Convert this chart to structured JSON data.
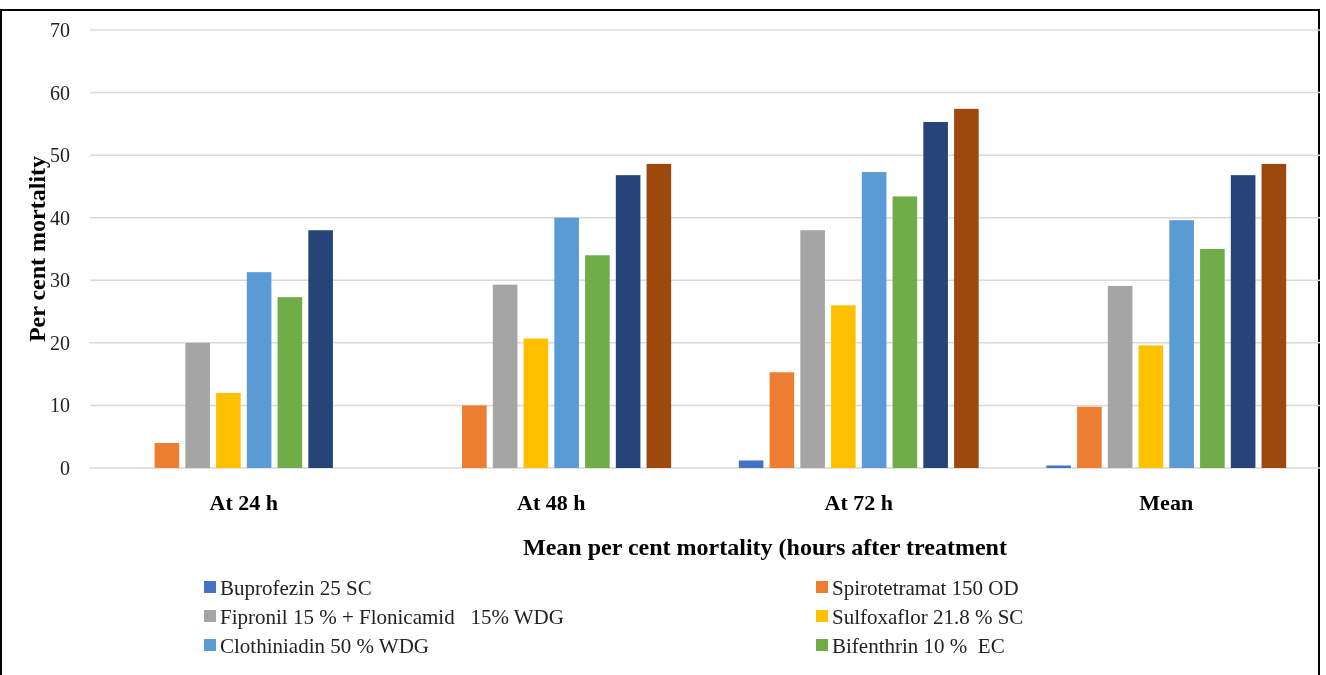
{
  "chart_data": {
    "type": "bar",
    "xlabel": "Mean per cent mortality (hours after treatment",
    "ylabel": "Per cent mortality",
    "categories": [
      "At 24 h",
      "At 48 h",
      "At 72 h",
      "Mean"
    ],
    "series": [
      {
        "name": "Buprofezin 25 SC",
        "color": "#4472c4",
        "values": [
          0,
          0,
          1.2,
          0.4
        ]
      },
      {
        "name": "Spirotetramat 150 OD",
        "color": "#ed7d31",
        "values": [
          4,
          10,
          15.3,
          9.8
        ]
      },
      {
        "name": "Fipronil 15 % + Flonicamid   15% WDG",
        "color": "#a5a5a5",
        "values": [
          20,
          29.3,
          38,
          29.1
        ]
      },
      {
        "name": "Sulfoxaflor 21.8 % SC",
        "color": "#ffc000",
        "values": [
          12,
          20.7,
          26,
          19.6
        ]
      },
      {
        "name": "Clothiniadin 50 % WDG",
        "color": "#5b9bd5",
        "values": [
          31.3,
          40,
          47.3,
          39.6
        ]
      },
      {
        "name": "Bifenthrin 10 %  EC",
        "color": "#70ad47",
        "values": [
          27.3,
          34,
          43.4,
          35
        ]
      },
      {
        "color": "#264478",
        "values": [
          38,
          46.8,
          55.3,
          46.8
        ]
      },
      {
        "color": "#9e480e",
        "values": [
          0,
          48.6,
          57.4,
          48.6
        ]
      }
    ],
    "ylim": [
      0,
      70
    ],
    "yticks": [
      0,
      10,
      20,
      30,
      40,
      50,
      60,
      70
    ],
    "grid": "y",
    "legend": "bottom"
  }
}
